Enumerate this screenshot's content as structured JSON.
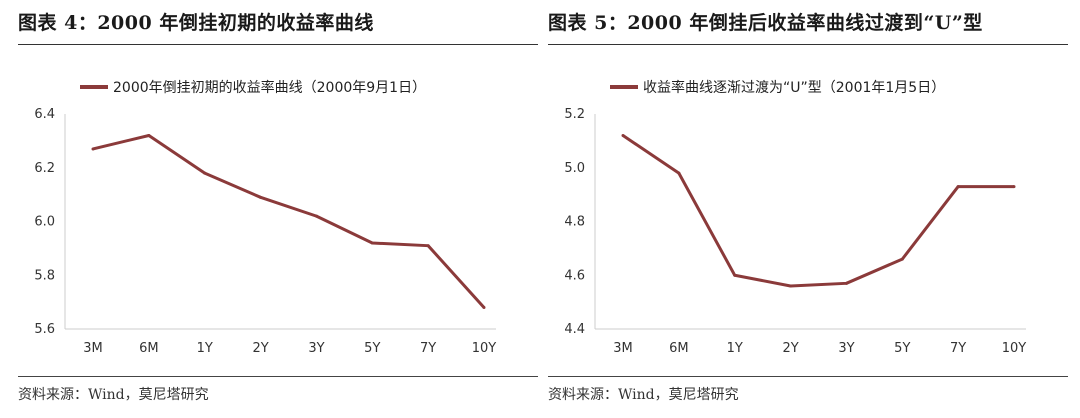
{
  "panels": [
    {
      "figure_title": "图表 4：2000 年倒挂初期的收益率曲线",
      "source": "资料来源：Wind，莫尼塔研究"
    },
    {
      "figure_title": "图表 5：2000 年倒挂后收益率曲线过渡到“U”型",
      "source": "资料来源：Wind，莫尼塔研究"
    }
  ],
  "chart_data": [
    {
      "type": "line",
      "categories": [
        "3M",
        "6M",
        "1Y",
        "2Y",
        "3Y",
        "5Y",
        "7Y",
        "10Y"
      ],
      "series": [
        {
          "name": "2000年倒挂初期的收益率曲线（2000年9月1日）",
          "values": [
            6.27,
            6.32,
            6.18,
            6.09,
            6.02,
            5.92,
            5.91,
            5.68
          ]
        }
      ],
      "ylim": [
        5.6,
        6.4
      ],
      "yticks": [
        "6.4",
        "6.2",
        "6.0",
        "5.8",
        "5.6"
      ],
      "ytick_values": [
        6.4,
        6.2,
        6.0,
        5.8,
        5.6
      ],
      "line_color": "#8b3a3a",
      "axis_color": "#cccccc",
      "grid": false,
      "legend_position": "top-left"
    },
    {
      "type": "line",
      "categories": [
        "3M",
        "6M",
        "1Y",
        "2Y",
        "3Y",
        "5Y",
        "7Y",
        "10Y"
      ],
      "series": [
        {
          "name": "收益率曲线逐渐过渡为“U”型（2001年1月5日）",
          "values": [
            5.12,
            4.98,
            4.6,
            4.56,
            4.57,
            4.66,
            4.93,
            4.93
          ]
        }
      ],
      "ylim": [
        4.4,
        5.2
      ],
      "yticks": [
        "5.2",
        "5.0",
        "4.8",
        "4.6",
        "4.4"
      ],
      "ytick_values": [
        5.2,
        5.0,
        4.8,
        4.6,
        4.4
      ],
      "line_color": "#8b3a3a",
      "axis_color": "#cccccc",
      "grid": false,
      "legend_position": "top-left"
    }
  ]
}
